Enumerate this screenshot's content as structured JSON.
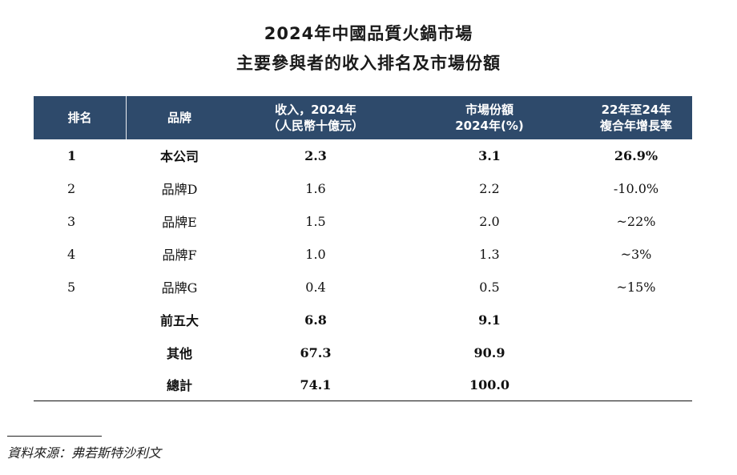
{
  "title_line1": "2024年中國品質火鍋市場",
  "title_line2": "主要參與者的收入排名及市場份額",
  "header": {
    "rank": "排名",
    "brand": "品牌",
    "revenue_line1": "收入，2024年",
    "revenue_line2": "（人民幣十億元）",
    "share_line1": "市場份額",
    "share_line2": "2024年(%)",
    "cagr_line1": "22年至24年",
    "cagr_line2": "複合年增長率"
  },
  "colors": {
    "header_bg": "#2e4a6b",
    "header_text": "#ffffff"
  },
  "rows": [
    {
      "rank": "1",
      "brand": "本公司",
      "revenue": "2.3",
      "share": "3.1",
      "cagr": "26.9%",
      "bold": true
    },
    {
      "rank": "2",
      "brand": "品牌D",
      "revenue": "1.6",
      "share": "2.2",
      "cagr": "-10.0%",
      "bold": false
    },
    {
      "rank": "3",
      "brand": "品牌E",
      "revenue": "1.5",
      "share": "2.0",
      "cagr": "~22%",
      "bold": false
    },
    {
      "rank": "4",
      "brand": "品牌F",
      "revenue": "1.0",
      "share": "1.3",
      "cagr": "~3%",
      "bold": false
    },
    {
      "rank": "5",
      "brand": "品牌G",
      "revenue": "0.4",
      "share": "0.5",
      "cagr": "~15%",
      "bold": false
    },
    {
      "rank": "",
      "brand": "前五大",
      "revenue": "6.8",
      "share": "9.1",
      "cagr": "",
      "bold": true
    },
    {
      "rank": "",
      "brand": "其他",
      "revenue": "67.3",
      "share": "90.9",
      "cagr": "",
      "bold": true
    },
    {
      "rank": "",
      "brand": "總計",
      "revenue": "74.1",
      "share": "100.0",
      "cagr": "",
      "bold": true
    }
  ],
  "source": "資料來源：弗若斯特沙利文"
}
